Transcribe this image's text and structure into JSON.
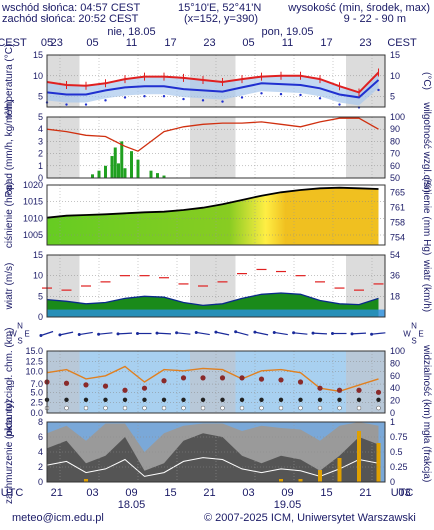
{
  "header": {
    "sunrise": "wschód słońca: 04:57 CEST",
    "sunset": "zachód słońca: 20:52 CEST",
    "coords": "15°10'E, 52°41'N",
    "grid_point": "(x=152, y=390)",
    "altitude_label": "wysokość (min, środek, max)",
    "altitude_values": "9 - 22 - 90 m"
  },
  "time_axis": {
    "tz_label": "CEST",
    "utc_label": "UTC",
    "top_hours": [
      "23",
      "05",
      "11",
      "17",
      "23",
      "05",
      "11",
      "17",
      "23",
      "05"
    ],
    "bottom_hours": [
      "21",
      "03",
      "09",
      "15",
      "21",
      "03",
      "09",
      "15",
      "21",
      "03"
    ],
    "days_top": [
      "nie, 18.05",
      "pon, 19.05"
    ],
    "days_bottom": [
      "18.05",
      "19.05"
    ]
  },
  "footer": {
    "email": "meteo@icm.edu.pl",
    "copyright": "© 2007-2025 ICM, Uniwersytet Warszawski"
  },
  "colors": {
    "night_band": "#dcdcdc",
    "temp_max": "#e02020",
    "temp_mid": "#2030d0",
    "rain": "#20a020",
    "humidity": "#d03010",
    "pressure": "#000000",
    "wind_fill": "#1a8a1a",
    "wind_gust": "#e02020",
    "visibility": "#e08020",
    "cloud_dark": "#555555",
    "fog": "#e0a000",
    "label": "#1a1a66"
  },
  "chart_data": [
    {
      "type": "line",
      "name": "temperature",
      "ylabel_left": "temperatura (°C)",
      "ylabel_right": "(°C)",
      "ylim": [
        2.5,
        15
      ],
      "yticks": [
        5,
        10,
        15
      ],
      "x_hours": [
        0,
        3,
        6,
        9,
        12,
        15,
        18,
        21,
        24,
        27,
        30,
        33,
        36,
        39,
        42,
        45,
        48,
        51
      ],
      "series": [
        {
          "values": [
            8.5,
            7.8,
            7.6,
            8.2,
            9.2,
            9.8,
            9.8,
            9.5,
            9.0,
            8.5,
            9.2,
            9.8,
            10.0,
            10.0,
            9.2,
            7.5,
            6.0,
            10.8
          ]
        },
        {
          "values": [
            6.0,
            5.5,
            5.5,
            6.5,
            7.2,
            7.5,
            7.5,
            6.8,
            6.5,
            6.2,
            7.2,
            8.2,
            8.0,
            7.8,
            7.0,
            5.5,
            4.8,
            9.0
          ]
        }
      ]
    },
    {
      "type": "bar",
      "name": "precipitation",
      "ylabel_left": "opad (mm/h, kg/m²/h)",
      "ylabel_right": "wilgotność wzgl. (%)",
      "ylim": [
        0,
        5
      ],
      "yticks": [
        0,
        1,
        2,
        3,
        4,
        5
      ],
      "y2lim": [
        50,
        100
      ],
      "y2ticks": [
        50,
        60,
        70,
        80,
        90,
        100
      ],
      "rain_hours": [
        7,
        8,
        9,
        10,
        10.5,
        11,
        11.5,
        12,
        13,
        14,
        16,
        17,
        18
      ],
      "rain_values": [
        0.3,
        0.6,
        1.0,
        1.8,
        2.5,
        1.2,
        3.0,
        0.8,
        2.2,
        1.5,
        0.6,
        0.4,
        0.2
      ],
      "humidity_x": [
        0,
        3,
        6,
        9,
        12,
        14,
        16,
        18,
        21,
        24,
        27,
        30,
        33,
        36,
        39,
        42,
        45,
        48,
        51
      ],
      "humidity": [
        90,
        88,
        85,
        84,
        76,
        72,
        80,
        88,
        92,
        94,
        95,
        95,
        96,
        94,
        92,
        96,
        99,
        99,
        90
      ]
    },
    {
      "type": "area",
      "name": "pressure",
      "ylabel_left": "ciśnienie (hPa)",
      "ylabel_right": "ciśnienie (mm Hg)",
      "ylim": [
        1002,
        1020
      ],
      "yticks": [
        1005,
        1010,
        1015,
        1020
      ],
      "y2ticks": [
        754,
        758,
        761,
        765
      ],
      "x_hours": [
        0,
        3,
        6,
        9,
        12,
        15,
        18,
        21,
        24,
        27,
        30,
        33,
        36,
        39,
        42,
        45,
        48,
        51
      ],
      "values": [
        1010.2,
        1010.8,
        1011.0,
        1011.2,
        1011.5,
        1011.8,
        1012.0,
        1012.5,
        1013.2,
        1014.2,
        1015.5,
        1016.8,
        1017.8,
        1018.5,
        1019.0,
        1019.2,
        1019.0,
        1018.8
      ]
    },
    {
      "type": "area",
      "name": "wind",
      "ylabel_left": "wiatr (m/s)",
      "ylabel_right": "wiatr (km/h)",
      "ylim": [
        0,
        15
      ],
      "yticks": [
        0,
        5,
        10,
        15
      ],
      "y2ticks": [
        18,
        36,
        54
      ],
      "x_hours": [
        0,
        3,
        6,
        9,
        12,
        15,
        18,
        21,
        24,
        27,
        30,
        33,
        36,
        39,
        42,
        45,
        48,
        51
      ],
      "speed": [
        4.2,
        3.8,
        3.2,
        3.5,
        4.5,
        5.0,
        4.8,
        3.5,
        2.8,
        3.2,
        4.5,
        5.5,
        5.8,
        5.5,
        4.0,
        3.2,
        3.0,
        4.5
      ],
      "gust": [
        7.0,
        6.5,
        7.5,
        8.5,
        10.0,
        10.0,
        9.5,
        8.0,
        7.5,
        8.5,
        10.5,
        11.5,
        11.0,
        10.0,
        8.5,
        7.0,
        6.5,
        8.0
      ]
    },
    {
      "type": "table",
      "name": "wind_direction",
      "rose_labels": [
        "N",
        "S",
        "W",
        "E"
      ],
      "x_hours": [
        0,
        3,
        6,
        9,
        12,
        15,
        18,
        21,
        24,
        27,
        30,
        33,
        36,
        39,
        42,
        45,
        48,
        51
      ],
      "direction_deg": [
        240,
        250,
        255,
        260,
        265,
        270,
        275,
        280,
        285,
        290,
        295,
        290,
        285,
        280,
        275,
        270,
        265,
        260
      ]
    },
    {
      "type": "scatter",
      "name": "visibility",
      "ylabel_left": "pion. rozciągł. chm. (km)",
      "ylabel_right": "widzialność (km)",
      "ylim": [
        0,
        15
      ],
      "yticks": [
        0.0,
        2.5,
        5.0,
        7.0,
        10.0,
        12.5,
        15.0
      ],
      "y2lim": [
        0,
        100
      ],
      "y2ticks": [
        0,
        20,
        40,
        60,
        80,
        100
      ],
      "x_hours": [
        0,
        3,
        6,
        9,
        12,
        15,
        18,
        21,
        24,
        27,
        30,
        33,
        36,
        39,
        42,
        45,
        48,
        51
      ],
      "cloud_base_km": [
        7.5,
        7.2,
        6.8,
        6.5,
        5.5,
        6.0,
        7.8,
        8.5,
        8.5,
        8.5,
        8.5,
        8.2,
        8.0,
        7.5,
        6.0,
        5.5,
        5.5,
        5.0
      ],
      "visibility_km": [
        65,
        70,
        55,
        60,
        75,
        50,
        70,
        68,
        72,
        70,
        55,
        68,
        70,
        65,
        40,
        35,
        45,
        55
      ]
    },
    {
      "type": "area",
      "name": "cloud_cover",
      "ylabel_left": "zachmurzenie (oktanty)",
      "ylabel_right": "mgła (frakcja)",
      "ylim": [
        0,
        8
      ],
      "yticks": [
        0,
        2,
        4,
        6,
        8
      ],
      "y2lim": [
        0,
        1
      ],
      "y2ticks": [
        0,
        0.25,
        0.5,
        0.75,
        1.0
      ],
      "x_hours": [
        0,
        3,
        6,
        9,
        12,
        15,
        18,
        21,
        24,
        27,
        30,
        33,
        36,
        39,
        42,
        45,
        48,
        51
      ],
      "total": [
        6.5,
        7.5,
        5.5,
        7.8,
        7.8,
        4.0,
        6.5,
        7.5,
        7.8,
        7.8,
        6.8,
        7.5,
        7.2,
        7.0,
        5.5,
        7.5,
        8.0,
        7.5
      ],
      "low": [
        4.5,
        5.5,
        2.5,
        3.5,
        6.0,
        1.5,
        2.5,
        5.5,
        6.5,
        6.0,
        3.5,
        2.5,
        3.5,
        3.0,
        1.5,
        3.5,
        6.0,
        5.0
      ],
      "fog": [
        0,
        0,
        0.05,
        0,
        0,
        0,
        0,
        0,
        0,
        0,
        0,
        0,
        0.05,
        0.05,
        0.2,
        0.4,
        0.85,
        0.65
      ]
    }
  ]
}
